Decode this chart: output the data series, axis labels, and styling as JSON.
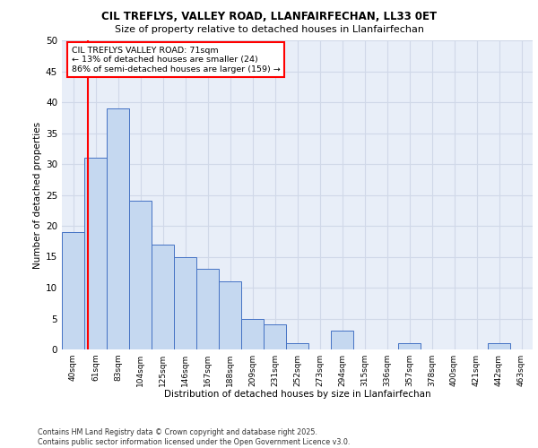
{
  "title": "CIL TREFLYS, VALLEY ROAD, LLANFAIRFECHAN, LL33 0ET",
  "subtitle": "Size of property relative to detached houses in Llanfairfechan",
  "xlabel": "Distribution of detached houses by size in Llanfairfechan",
  "ylabel": "Number of detached properties",
  "categories": [
    "40sqm",
    "61sqm",
    "83sqm",
    "104sqm",
    "125sqm",
    "146sqm",
    "167sqm",
    "188sqm",
    "209sqm",
    "231sqm",
    "252sqm",
    "273sqm",
    "294sqm",
    "315sqm",
    "336sqm",
    "357sqm",
    "378sqm",
    "400sqm",
    "421sqm",
    "442sqm",
    "463sqm"
  ],
  "values": [
    19,
    31,
    39,
    24,
    17,
    15,
    13,
    11,
    5,
    4,
    1,
    0,
    3,
    0,
    0,
    1,
    0,
    0,
    0,
    1,
    0
  ],
  "bar_color": "#c5d8f0",
  "bar_edge_color": "#4472c4",
  "vline_x_index": 1,
  "vline_color": "#ff0000",
  "annotation_text": "CIL TREFLYS VALLEY ROAD: 71sqm\n← 13% of detached houses are smaller (24)\n86% of semi-detached houses are larger (159) →",
  "annotation_box_color": "#ffffff",
  "annotation_box_edge": "#ff0000",
  "ylim": [
    0,
    50
  ],
  "yticks": [
    0,
    5,
    10,
    15,
    20,
    25,
    30,
    35,
    40,
    45,
    50
  ],
  "grid_color": "#d0d8e8",
  "background_color": "#e8eef8",
  "footer": "Contains HM Land Registry data © Crown copyright and database right 2025.\nContains public sector information licensed under the Open Government Licence v3.0."
}
